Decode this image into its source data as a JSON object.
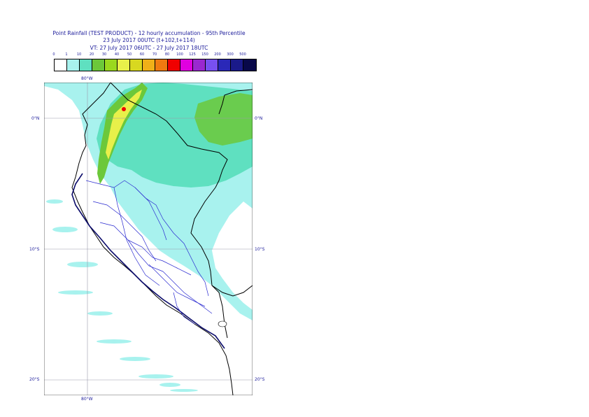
{
  "title": {
    "line1": "Point Rainfall (TEST PRODUCT) - 12 hourly accumulation - 95th Percentile",
    "line2": "23 July 2017 00UTC (t+102,t+114)",
    "line3": "VT: 27 July 2017 06UTC - 27 July 2017 18UTC"
  },
  "legend": {
    "ticks": [
      "0",
      "1",
      "10",
      "20",
      "30",
      "40",
      "50",
      "60",
      "70",
      "80",
      "100",
      "125",
      "150",
      "200",
      "300",
      "500"
    ],
    "colors": [
      "#ffffff",
      "#a8f2ee",
      "#5fe0c0",
      "#6cc83a",
      "#9ad81e",
      "#e8f04a",
      "#d8d820",
      "#f0b018",
      "#f07a10",
      "#f00000",
      "#e000e0",
      "#9a28d0",
      "#7850f0",
      "#2a28b8",
      "#1a1a8a",
      "#08084a"
    ]
  },
  "axes": {
    "lon_top": "80°W",
    "lon_bottom": "80°W",
    "lat_right": [
      "0°N",
      "10°S",
      "20°S"
    ],
    "lat_left": [
      "0°N",
      "10°S",
      "20°S"
    ]
  }
}
